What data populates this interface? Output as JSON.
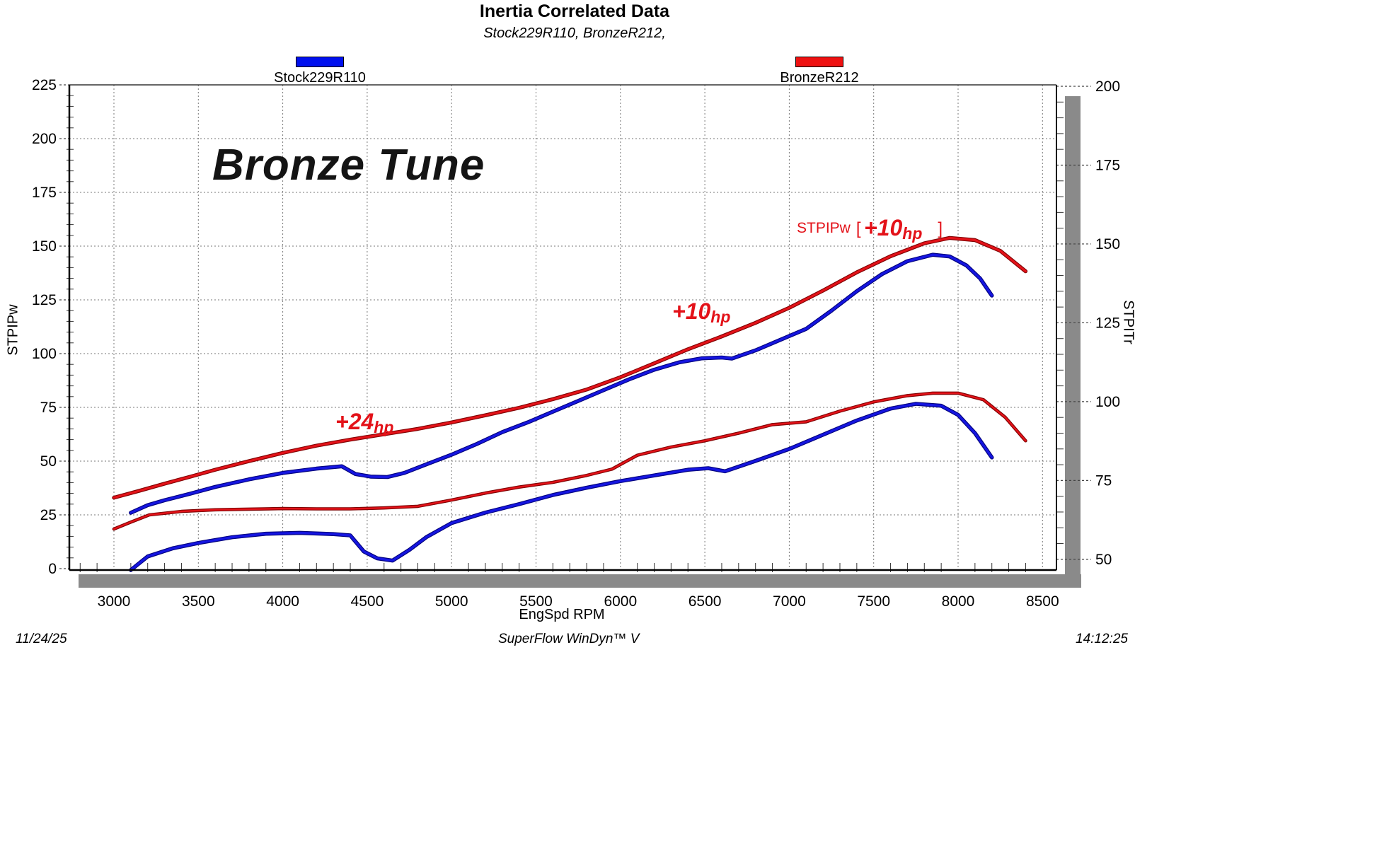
{
  "header": {
    "title": "Inertia Correlated Data",
    "subtitle": "Stock229R110, BronzeR212,"
  },
  "legend": {
    "items": [
      {
        "label": "Stock229R110",
        "color": "#0010ee"
      },
      {
        "label": "BronzeR212",
        "color": "#ee1111"
      }
    ]
  },
  "annotations": {
    "watermark": "Bronze Tune",
    "gain_low": {
      "main": "+24",
      "sub": "hp"
    },
    "gain_mid": {
      "main": "+10",
      "sub": "hp"
    },
    "gain_peak": {
      "prefix": "STPIPw",
      "open": "[",
      "main": "+10",
      "sub": "hp",
      "close": "]"
    }
  },
  "footer": {
    "date": "11/24/25",
    "center": "SuperFlow WinDyn™ V",
    "time": "14:12:25"
  },
  "chart_data": {
    "type": "line",
    "title": "Inertia Correlated Data",
    "xlabel": "EngSpd RPM",
    "x_range": [
      2736,
      8582
    ],
    "x_ticks": [
      3000,
      3500,
      4000,
      4500,
      5000,
      5500,
      6000,
      6500,
      7000,
      7500,
      8000,
      8500
    ],
    "x_minor_step": 100,
    "grid": "dashed-horizontal-and-vertical",
    "left_axis": {
      "label": "STPIPw",
      "ticks": [
        0,
        25,
        50,
        75,
        100,
        125,
        150,
        175,
        200,
        225
      ],
      "min": 0,
      "max": 225,
      "minor_step": 5
    },
    "right_axis": {
      "label": "STPITr",
      "ticks": [
        50,
        75,
        100,
        125,
        150,
        175,
        200
      ],
      "top_value": 200.45,
      "bottom_value": 46.6,
      "minor_step": 5
    },
    "colors": {
      "stock": "#1515e0",
      "stock_edge": "#00007a",
      "bronze": "#e31219",
      "bronze_edge": "#7e0000",
      "gridline": "#777777",
      "shadow": "#8a8a8a"
    },
    "series": [
      {
        "name": "BronzeR212 STPIPw",
        "axis": "left",
        "color": "bronze",
        "width": 3.2,
        "points": [
          [
            3000,
            33
          ],
          [
            3150,
            36.2
          ],
          [
            3300,
            39.5
          ],
          [
            3450,
            42.7
          ],
          [
            3600,
            46
          ],
          [
            3800,
            50
          ],
          [
            4000,
            53.8
          ],
          [
            4200,
            57.2
          ],
          [
            4400,
            60
          ],
          [
            4600,
            62.5
          ],
          [
            4800,
            65
          ],
          [
            5000,
            68
          ],
          [
            5200,
            71.3
          ],
          [
            5400,
            74.8
          ],
          [
            5600,
            78.8
          ],
          [
            5800,
            83.3
          ],
          [
            6000,
            89
          ],
          [
            6200,
            95.5
          ],
          [
            6400,
            102
          ],
          [
            6600,
            108
          ],
          [
            6800,
            114.3
          ],
          [
            7000,
            121.3
          ],
          [
            7200,
            129.3
          ],
          [
            7400,
            137.8
          ],
          [
            7600,
            145.3
          ],
          [
            7800,
            151.3
          ],
          [
            7950,
            153.8
          ],
          [
            8100,
            152.8
          ],
          [
            8250,
            147.8
          ],
          [
            8400,
            138.3
          ]
        ]
      },
      {
        "name": "Stock229R110 STPIPw",
        "axis": "left",
        "color": "stock",
        "width": 3.4,
        "points": [
          [
            3100,
            26
          ],
          [
            3200,
            29.5
          ],
          [
            3300,
            31.8
          ],
          [
            3450,
            34.8
          ],
          [
            3600,
            38
          ],
          [
            3800,
            41.5
          ],
          [
            4000,
            44.5
          ],
          [
            4200,
            46.5
          ],
          [
            4350,
            47.6
          ],
          [
            4430,
            44
          ],
          [
            4520,
            42.8
          ],
          [
            4620,
            42.6
          ],
          [
            4720,
            44.5
          ],
          [
            4850,
            48.5
          ],
          [
            5000,
            53
          ],
          [
            5150,
            58
          ],
          [
            5300,
            63.5
          ],
          [
            5450,
            68
          ],
          [
            5600,
            73
          ],
          [
            5750,
            78
          ],
          [
            5900,
            83
          ],
          [
            6050,
            88
          ],
          [
            6200,
            92.5
          ],
          [
            6350,
            96
          ],
          [
            6480,
            97.8
          ],
          [
            6600,
            98.2
          ],
          [
            6660,
            97.7
          ],
          [
            6800,
            101.5
          ],
          [
            6950,
            106.5
          ],
          [
            7100,
            111.5
          ],
          [
            7250,
            120
          ],
          [
            7400,
            129
          ],
          [
            7550,
            137
          ],
          [
            7700,
            143
          ],
          [
            7850,
            146
          ],
          [
            7950,
            145.2
          ],
          [
            8050,
            141
          ],
          [
            8130,
            135
          ],
          [
            8200,
            127
          ]
        ]
      },
      {
        "name": "BronzeR212 STPITr",
        "axis": "right",
        "color": "bronze",
        "width": 2.4,
        "points": [
          [
            3000,
            59.6
          ],
          [
            3100,
            61.8
          ],
          [
            3210,
            64.1
          ],
          [
            3400,
            65.2
          ],
          [
            3600,
            65.7
          ],
          [
            3800,
            65.9
          ],
          [
            4000,
            66.1
          ],
          [
            4200,
            66
          ],
          [
            4400,
            66
          ],
          [
            4600,
            66.3
          ],
          [
            4800,
            66.8
          ],
          [
            5000,
            68.8
          ],
          [
            5200,
            71
          ],
          [
            5400,
            72.9
          ],
          [
            5600,
            74.4
          ],
          [
            5800,
            76.6
          ],
          [
            5950,
            78.6
          ],
          [
            6100,
            83
          ],
          [
            6300,
            85.6
          ],
          [
            6500,
            87.6
          ],
          [
            6700,
            90
          ],
          [
            6900,
            92.7
          ],
          [
            7100,
            93.6
          ],
          [
            7300,
            97
          ],
          [
            7500,
            99.9
          ],
          [
            7700,
            101.9
          ],
          [
            7850,
            102.7
          ],
          [
            8000,
            102.7
          ],
          [
            8150,
            100.6
          ],
          [
            8280,
            95
          ],
          [
            8400,
            87.6
          ]
        ]
      },
      {
        "name": "Stock229R110 STPITr",
        "axis": "right",
        "color": "stock",
        "width": 3.4,
        "points": [
          [
            3100,
            46.6
          ],
          [
            3200,
            50.9
          ],
          [
            3350,
            53.5
          ],
          [
            3500,
            55.2
          ],
          [
            3700,
            57
          ],
          [
            3900,
            58.1
          ],
          [
            4100,
            58.4
          ],
          [
            4300,
            58
          ],
          [
            4400,
            57.6
          ],
          [
            4480,
            52.5
          ],
          [
            4560,
            50.3
          ],
          [
            4650,
            49.6
          ],
          [
            4750,
            53
          ],
          [
            4850,
            57
          ],
          [
            5000,
            61.5
          ],
          [
            5200,
            64.8
          ],
          [
            5400,
            67.5
          ],
          [
            5600,
            70.4
          ],
          [
            5800,
            72.7
          ],
          [
            6000,
            74.8
          ],
          [
            6200,
            76.6
          ],
          [
            6400,
            78.4
          ],
          [
            6520,
            78.9
          ],
          [
            6620,
            77.9
          ],
          [
            6800,
            81.2
          ],
          [
            7000,
            85
          ],
          [
            7200,
            89.5
          ],
          [
            7400,
            94
          ],
          [
            7600,
            97.8
          ],
          [
            7750,
            99.3
          ],
          [
            7900,
            98.7
          ],
          [
            8000,
            95.8
          ],
          [
            8100,
            90
          ],
          [
            8200,
            82.3
          ]
        ]
      }
    ]
  }
}
